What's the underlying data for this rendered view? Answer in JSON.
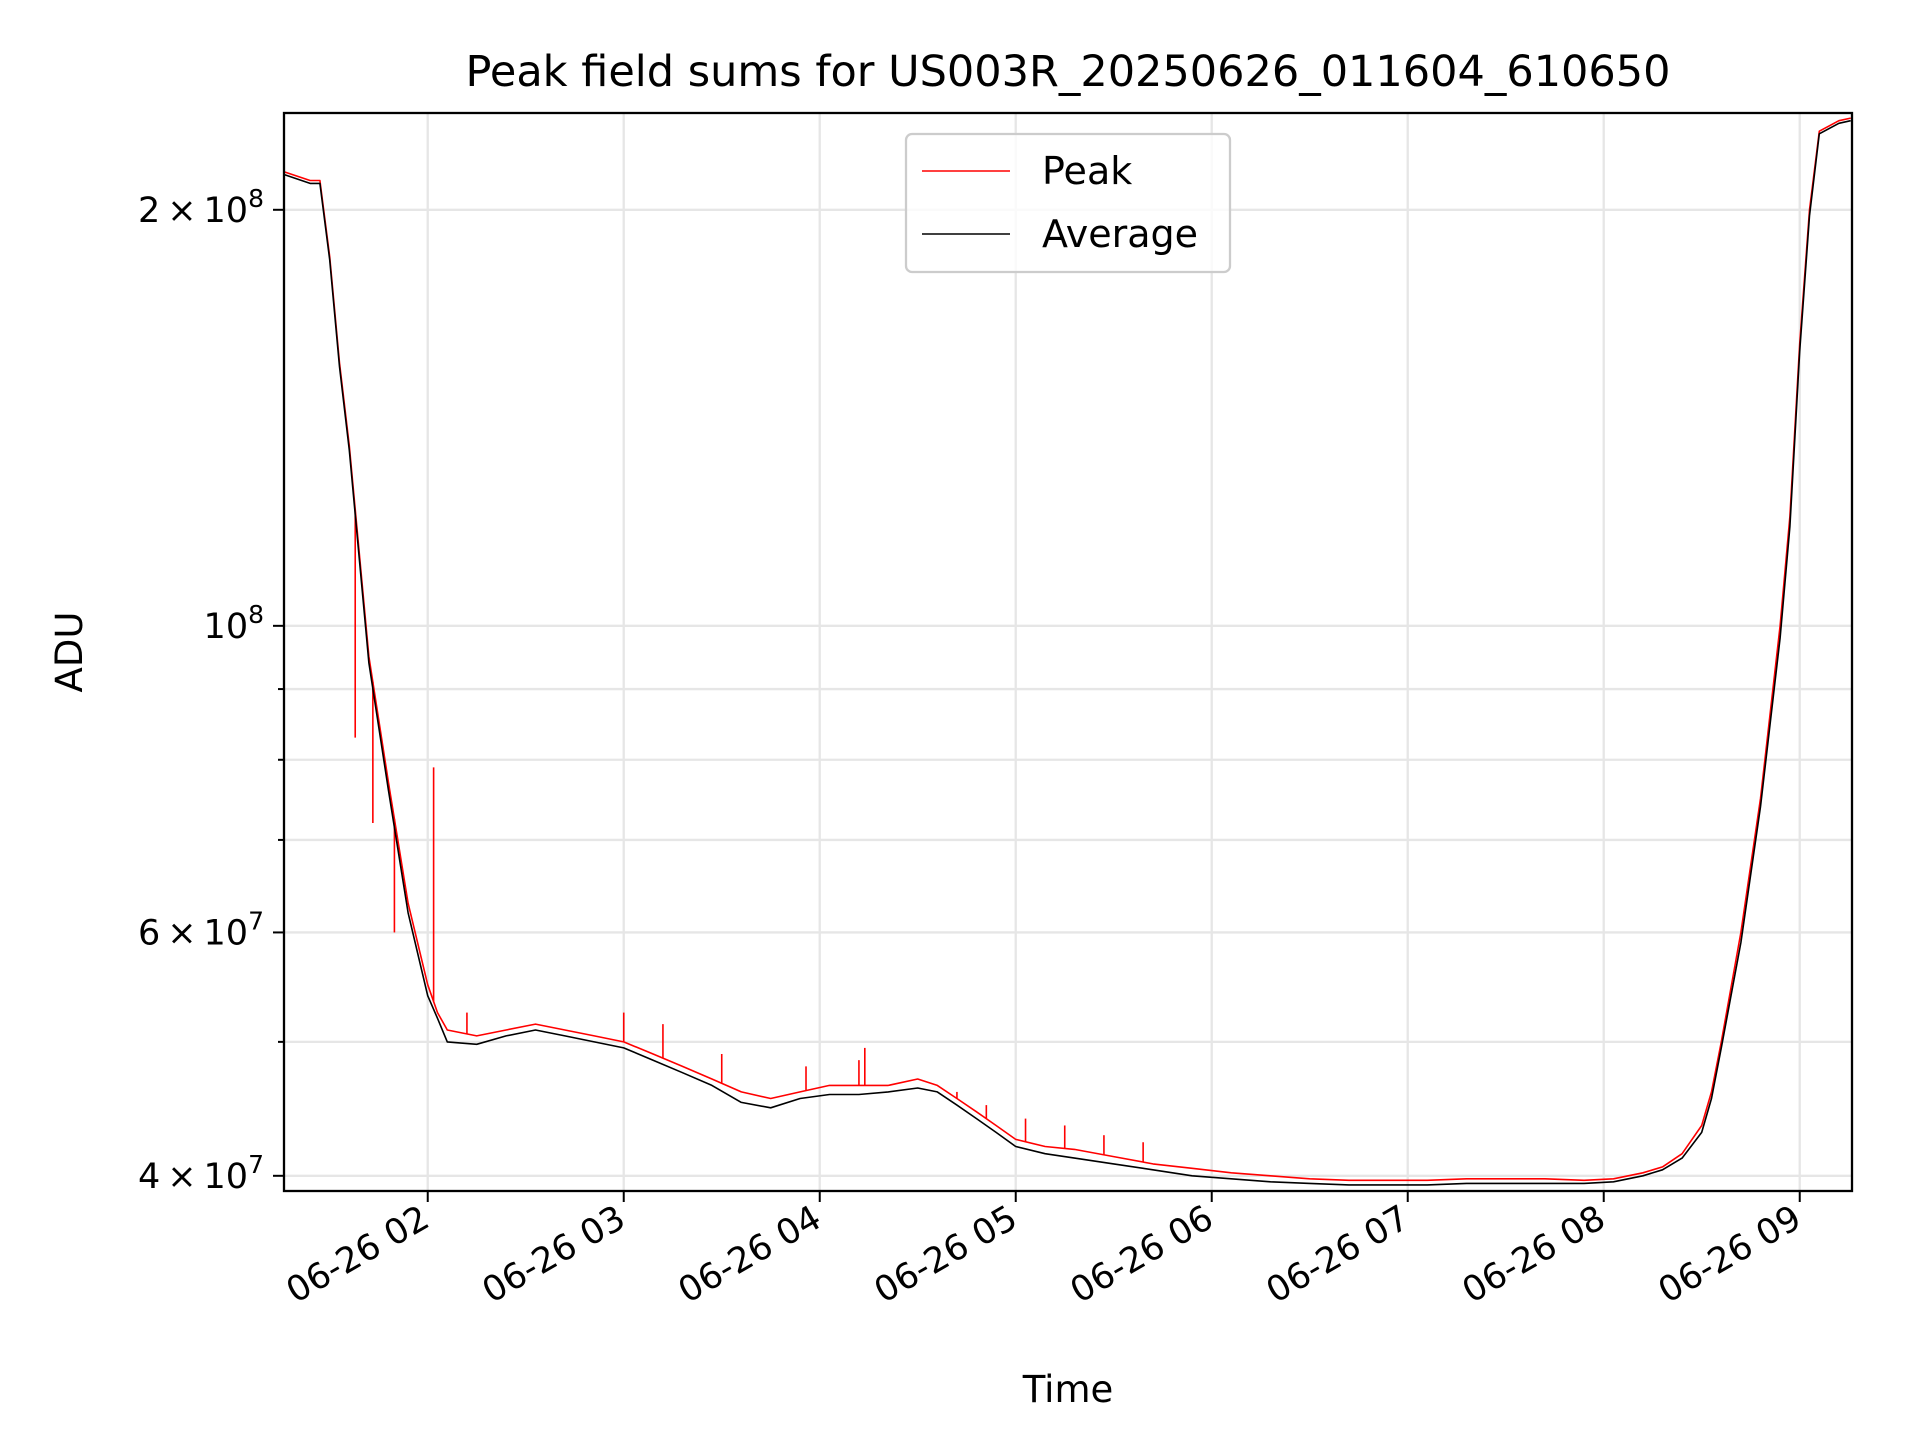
{
  "chart_data": {
    "type": "line",
    "title": "Peak field sums for US003R_20250626_011604_610650",
    "xlabel": "Time",
    "ylabel": "ADU",
    "yscale": "log",
    "xlim": [
      "06-26 01:16",
      "06-26 09:16"
    ],
    "ylim": [
      39000000,
      235000000
    ],
    "grid": true,
    "legend_position": "upper center",
    "x_tick_labels": [
      "06-26 02",
      "06-26 03",
      "06-26 04",
      "06-26 05",
      "06-26 06",
      "06-26 07",
      "06-26 08",
      "06-26 09"
    ],
    "x_tick_hours": [
      2,
      3,
      4,
      5,
      6,
      7,
      8,
      9
    ],
    "y_major_ticks": [
      {
        "value": 40000000,
        "mantissa": "4",
        "exponent": "7"
      },
      {
        "value": 60000000,
        "mantissa": "6",
        "exponent": "7"
      },
      {
        "value": 100000000,
        "mantissa": "",
        "exponent": "8"
      },
      {
        "value": 200000000,
        "mantissa": "2",
        "exponent": "8"
      }
    ],
    "y_minor_ticks": [
      50000000,
      70000000,
      80000000,
      90000000
    ],
    "series": [
      {
        "name": "Peak",
        "color": "#ff0000",
        "x_hours": [
          1.27,
          1.4,
          1.45,
          1.5,
          1.55,
          1.6,
          1.7,
          1.8,
          1.9,
          2.0,
          2.05,
          2.1,
          2.25,
          2.4,
          2.55,
          2.7,
          2.85,
          3.0,
          3.15,
          3.3,
          3.45,
          3.6,
          3.75,
          3.9,
          4.05,
          4.2,
          4.35,
          4.5,
          4.6,
          4.7,
          4.8,
          4.9,
          5.0,
          5.15,
          5.3,
          5.5,
          5.7,
          5.9,
          6.1,
          6.3,
          6.5,
          6.7,
          6.9,
          7.1,
          7.3,
          7.5,
          7.7,
          7.9,
          8.05,
          8.2,
          8.3,
          8.4,
          8.5,
          8.55,
          8.6,
          8.7,
          8.8,
          8.9,
          8.95,
          9.0,
          9.05,
          9.1,
          9.2,
          9.26
        ],
        "values": [
          213000000,
          210000000,
          210000000,
          185000000,
          155000000,
          135000000,
          95000000,
          77000000,
          63000000,
          55000000,
          52500000,
          51000000,
          50500000,
          51000000,
          51500000,
          51000000,
          50500000,
          50000000,
          49000000,
          48000000,
          47000000,
          46000000,
          45500000,
          46000000,
          46500000,
          46500000,
          46500000,
          47000000,
          46500000,
          45500000,
          44500000,
          43500000,
          42500000,
          42000000,
          41800000,
          41300000,
          40800000,
          40500000,
          40200000,
          40000000,
          39800000,
          39700000,
          39700000,
          39700000,
          39800000,
          39800000,
          39800000,
          39700000,
          39800000,
          40200000,
          40600000,
          41500000,
          43500000,
          46000000,
          50000000,
          60000000,
          75000000,
          100000000,
          120000000,
          160000000,
          200000000,
          228000000,
          232000000,
          233000000
        ],
        "spikes": [
          {
            "x_hour": 1.63,
            "value": 83000000
          },
          {
            "x_hour": 1.72,
            "value": 72000000
          },
          {
            "x_hour": 1.83,
            "value": 60000000
          },
          {
            "x_hour": 2.03,
            "value": 79000000
          },
          {
            "x_hour": 2.2,
            "value": 52500000
          },
          {
            "x_hour": 3.0,
            "value": 52500000
          },
          {
            "x_hour": 3.2,
            "value": 51500000
          },
          {
            "x_hour": 3.5,
            "value": 49000000
          },
          {
            "x_hour": 3.93,
            "value": 48000000
          },
          {
            "x_hour": 4.2,
            "value": 48500000
          },
          {
            "x_hour": 4.23,
            "value": 49500000
          },
          {
            "x_hour": 4.7,
            "value": 46000000
          },
          {
            "x_hour": 4.85,
            "value": 45000000
          },
          {
            "x_hour": 5.05,
            "value": 44000000
          },
          {
            "x_hour": 5.25,
            "value": 43500000
          },
          {
            "x_hour": 5.45,
            "value": 42800000
          },
          {
            "x_hour": 5.65,
            "value": 42300000
          }
        ]
      },
      {
        "name": "Average",
        "color": "#000000",
        "x_hours": [
          1.27,
          1.4,
          1.45,
          1.5,
          1.55,
          1.6,
          1.7,
          1.8,
          1.9,
          2.0,
          2.05,
          2.1,
          2.25,
          2.4,
          2.55,
          2.7,
          2.85,
          3.0,
          3.15,
          3.3,
          3.45,
          3.6,
          3.75,
          3.9,
          4.05,
          4.2,
          4.35,
          4.5,
          4.6,
          4.7,
          4.8,
          4.9,
          5.0,
          5.15,
          5.3,
          5.5,
          5.7,
          5.9,
          6.1,
          6.3,
          6.5,
          6.7,
          6.9,
          7.1,
          7.3,
          7.5,
          7.7,
          7.9,
          8.05,
          8.2,
          8.3,
          8.4,
          8.5,
          8.55,
          8.6,
          8.7,
          8.8,
          8.9,
          8.95,
          9.0,
          9.05,
          9.1,
          9.2,
          9.26
        ],
        "values": [
          212000000,
          209000000,
          209000000,
          184000000,
          154000000,
          134000000,
          94000000,
          76000000,
          62000000,
          54000000,
          52000000,
          50000000,
          49800000,
          50500000,
          51000000,
          50500000,
          50000000,
          49500000,
          48500000,
          47500000,
          46500000,
          45200000,
          44800000,
          45500000,
          45800000,
          45800000,
          46000000,
          46300000,
          46000000,
          45000000,
          44000000,
          43000000,
          42000000,
          41500000,
          41200000,
          40800000,
          40400000,
          40000000,
          39800000,
          39600000,
          39500000,
          39400000,
          39400000,
          39400000,
          39500000,
          39500000,
          39500000,
          39500000,
          39600000,
          40000000,
          40400000,
          41200000,
          43000000,
          45500000,
          49500000,
          59000000,
          74000000,
          98000000,
          118000000,
          158000000,
          198000000,
          227000000,
          231000000,
          232000000
        ]
      }
    ]
  }
}
